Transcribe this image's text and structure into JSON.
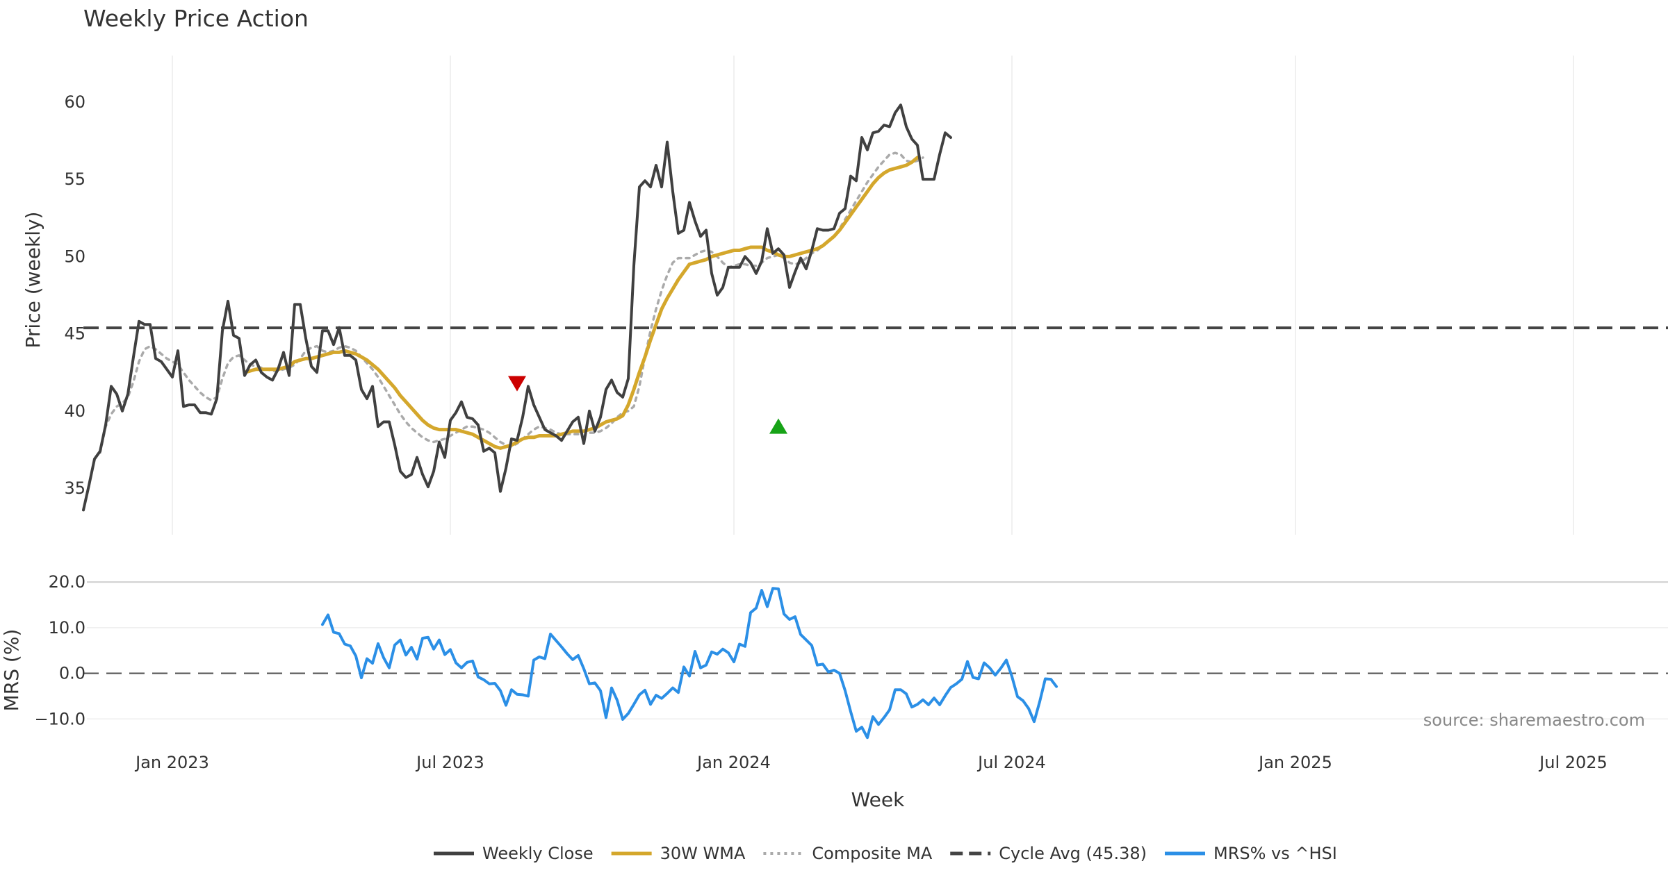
{
  "chart_data": [
    {
      "type": "line",
      "title": "Weekly Price Action",
      "ylabel": "Price (weekly)",
      "ylim": [
        32,
        63
      ],
      "yticks": [
        "60",
        "55",
        "50",
        "45",
        "40",
        "35"
      ],
      "x_tick_labels": [
        "Jan 2023",
        "Jul 2023",
        "Jan 2024",
        "Jul 2024",
        "Jan 2025",
        "Jul 2025"
      ],
      "x_tick_weeks": [
        16,
        66,
        117,
        167,
        218,
        268
      ],
      "x_range_weeks": [
        0,
        285
      ],
      "cycle_avg": 45.38,
      "series": [
        {
          "name": "Weekly Close",
          "color": "#404040",
          "style": "solid",
          "start_week": 0,
          "values": [
            33.6,
            35.2,
            36.9,
            37.4,
            39.1,
            41.6,
            41.1,
            40.0,
            41.1,
            43.5,
            45.8,
            45.6,
            45.6,
            43.4,
            43.2,
            42.7,
            42.2,
            43.9,
            40.3,
            40.4,
            40.4,
            39.9,
            39.9,
            39.8,
            40.8,
            45.2,
            47.1,
            44.9,
            44.7,
            42.3,
            43.0,
            43.3,
            42.5,
            42.2,
            42.0,
            42.7,
            43.8,
            42.3,
            46.9,
            46.9,
            44.7,
            42.9,
            42.5,
            45.2,
            45.2,
            44.3,
            45.4,
            43.6,
            43.6,
            43.3,
            41.4,
            40.8,
            41.6,
            39.0,
            39.3,
            39.3,
            37.8,
            36.1,
            35.7,
            35.9,
            37.0,
            35.9,
            35.1,
            36.1,
            38.0,
            37.0,
            39.4,
            39.9,
            40.6,
            39.6,
            39.5,
            39.1,
            37.4,
            37.6,
            37.3,
            34.8,
            36.3,
            38.2,
            38.1,
            39.6,
            41.6,
            40.4,
            39.6,
            38.8,
            38.6,
            38.4,
            38.1,
            38.7,
            39.3,
            39.6,
            37.9,
            40.0,
            38.7,
            39.6,
            41.4,
            42.0,
            41.2,
            40.9,
            42.1,
            49.4,
            54.5,
            54.9,
            54.5,
            55.9,
            54.5,
            57.4,
            54.2,
            51.5,
            51.7,
            53.5,
            52.3,
            51.3,
            51.7,
            48.9,
            47.5,
            48.0,
            49.3,
            49.3,
            49.3,
            50.0,
            49.6,
            48.9,
            49.7,
            51.8,
            50.2,
            50.5,
            50.1,
            48.0,
            49.0,
            49.9,
            49.2,
            50.4,
            51.8,
            51.7,
            51.7,
            51.8,
            52.8,
            53.1,
            55.2,
            54.9,
            57.7,
            56.9,
            58.0,
            58.1,
            58.5,
            58.4,
            59.3,
            59.8,
            58.4,
            57.6,
            57.2,
            55.0,
            55.0,
            55.0,
            56.6,
            58.0,
            57.7
          ]
        },
        {
          "name": "30W WMA",
          "color": "#d4a72c",
          "style": "solid",
          "start_week": 29,
          "values": [
            42.5,
            42.6,
            42.7,
            42.7,
            42.7,
            42.7,
            42.7,
            42.8,
            42.9,
            43.2,
            43.3,
            43.4,
            43.4,
            43.5,
            43.6,
            43.7,
            43.8,
            43.8,
            43.9,
            43.8,
            43.7,
            43.5,
            43.3,
            43.0,
            42.7,
            42.3,
            41.9,
            41.5,
            41.0,
            40.6,
            40.2,
            39.8,
            39.4,
            39.1,
            38.9,
            38.8,
            38.8,
            38.8,
            38.8,
            38.7,
            38.6,
            38.5,
            38.3,
            38.1,
            37.9,
            37.7,
            37.6,
            37.7,
            37.8,
            38.0,
            38.2,
            38.3,
            38.3,
            38.4,
            38.4,
            38.4,
            38.4,
            38.5,
            38.6,
            38.7,
            38.7,
            38.7,
            38.8,
            38.9,
            39.1,
            39.3,
            39.4,
            39.5,
            39.7,
            40.4,
            41.4,
            42.5,
            43.5,
            44.6,
            45.6,
            46.6,
            47.3,
            47.9,
            48.5,
            49.0,
            49.5,
            49.6,
            49.7,
            49.8,
            50.0,
            50.1,
            50.2,
            50.3,
            50.4,
            50.4,
            50.5,
            50.6,
            50.6,
            50.6,
            50.4,
            50.3,
            50.1,
            50.0,
            50.0,
            50.1,
            50.2,
            50.3,
            50.4,
            50.5,
            50.7,
            51.0,
            51.3,
            51.7,
            52.2,
            52.7,
            53.2,
            53.7,
            54.2,
            54.7,
            55.1,
            55.4,
            55.6,
            55.7,
            55.8,
            55.9,
            56.1,
            56.4
          ]
        },
        {
          "name": "Composite MA",
          "color": "#aaaaaa",
          "style": "dotted",
          "start_week": 3,
          "values": [
            37.3,
            39.0,
            39.8,
            40.3,
            40.5,
            40.9,
            41.9,
            43.2,
            44.0,
            44.2,
            44.0,
            43.7,
            43.4,
            43.2,
            43.0,
            42.5,
            42.0,
            41.6,
            41.2,
            40.9,
            40.7,
            40.9,
            42.1,
            43.1,
            43.5,
            43.6,
            43.3,
            43.0,
            42.9,
            42.8,
            42.7,
            42.6,
            42.6,
            42.7,
            42.8,
            43.0,
            43.4,
            43.9,
            44.1,
            44.2,
            43.9,
            43.8,
            43.9,
            44.1,
            44.2,
            44.1,
            43.9,
            43.5,
            43.1,
            42.7,
            42.2,
            41.6,
            41.0,
            40.4,
            39.8,
            39.3,
            38.9,
            38.6,
            38.3,
            38.1,
            38.0,
            38.1,
            38.2,
            38.4,
            38.6,
            38.8,
            39.0,
            39.0,
            38.9,
            38.8,
            38.6,
            38.3,
            38.0,
            37.8,
            37.7,
            37.9,
            38.2,
            38.5,
            38.8,
            39.0,
            38.9,
            38.8,
            38.6,
            38.5,
            38.5,
            38.5,
            38.5,
            38.7,
            38.6,
            38.6,
            38.7,
            38.9,
            39.2,
            39.6,
            39.9,
            40.0,
            40.3,
            41.6,
            43.5,
            45.2,
            46.6,
            47.8,
            48.8,
            49.6,
            49.9,
            49.9,
            49.9,
            50.1,
            50.3,
            50.4,
            50.3,
            50.0,
            49.6,
            49.3,
            49.4,
            49.5,
            49.5,
            49.4,
            49.4,
            49.6,
            49.9,
            50.0,
            50.1,
            49.9,
            49.6,
            49.5,
            49.6,
            49.9,
            50.2,
            50.4,
            50.7,
            51.0,
            51.3,
            51.8,
            52.4,
            53.0,
            53.6,
            54.2,
            54.8,
            55.3,
            55.8,
            56.2,
            56.6,
            56.7,
            56.6,
            56.2,
            56.1,
            56.2,
            56.4
          ]
        },
        {
          "name": "Cycle Avg (45.38)",
          "color": "#444444",
          "style": "dashed",
          "values": [
            45.38
          ]
        }
      ],
      "markers": [
        {
          "type": "sell",
          "shape": "down-triangle",
          "color": "#cc0000",
          "week": 78,
          "value": 41.8
        },
        {
          "type": "buy",
          "shape": "up-triangle",
          "color": "#17a317",
          "week": 125,
          "value": 39.0
        }
      ]
    },
    {
      "type": "line",
      "xlabel": "Week",
      "ylabel": "MRS (%)",
      "ylim": [
        -13,
        22
      ],
      "yticks": [
        "20.0",
        "10.0",
        "0.0",
        "−10.0"
      ],
      "series": [
        {
          "name": "MRS% vs ^HSI",
          "color": "#2b8fe6",
          "style": "solid",
          "start_week": 43,
          "values": [
            10.7,
            12.8,
            9.0,
            8.7,
            6.4,
            6.0,
            3.8,
            -1.0,
            3.2,
            2.2,
            6.5,
            3.4,
            1.2,
            6.2,
            7.3,
            4.0,
            5.7,
            3.1,
            7.7,
            7.9,
            5.3,
            7.3,
            4.1,
            5.2,
            2.3,
            1.2,
            2.4,
            2.7,
            -0.8,
            -1.4,
            -2.3,
            -2.2,
            -3.8,
            -7.0,
            -3.6,
            -4.6,
            -4.7,
            -5.0,
            2.9,
            3.6,
            3.2,
            8.6,
            7.2,
            5.8,
            4.3,
            3.0,
            3.9,
            1.0,
            -2.3,
            -2.1,
            -3.8,
            -9.7,
            -3.2,
            -5.9,
            -10.1,
            -8.8,
            -6.8,
            -4.7,
            -3.7,
            -6.8,
            -4.8,
            -5.5,
            -4.4,
            -3.2,
            -4.2,
            1.4,
            -0.6,
            4.8,
            1.2,
            1.8,
            4.7,
            4.2,
            5.3,
            4.5,
            2.5,
            6.4,
            5.9,
            13.3,
            14.3,
            18.2,
            14.6,
            18.6,
            18.5,
            13.0,
            11.8,
            12.4,
            8.5,
            7.3,
            6.1,
            1.8,
            2.0,
            0.3,
            0.7,
            0.0,
            -3.8,
            -8.4,
            -12.7,
            -11.8,
            -14.1,
            -9.5,
            -11.2,
            -9.7,
            -8.0,
            -3.6,
            -3.6,
            -4.5,
            -7.4,
            -6.8,
            -5.8,
            -6.9,
            -5.4,
            -6.9,
            -4.9,
            -3.1,
            -2.3,
            -1.3,
            2.6,
            -0.9,
            -1.2,
            2.3,
            1.2,
            -0.4,
            1.1,
            2.9,
            -0.7,
            -5.1,
            -6.0,
            -7.7,
            -10.6,
            -6.2,
            -1.2,
            -1.3,
            -2.9
          ]
        },
        {
          "name": "Zero line",
          "color": "#555555",
          "style": "dashed",
          "values": [
            0
          ]
        }
      ]
    }
  ],
  "x_tick_labels": [
    "Jan 2023",
    "Jul 2023",
    "Jan 2024",
    "Jul 2024",
    "Jan 2025",
    "Jul 2025"
  ],
  "legend": [
    {
      "label": "Weekly Close",
      "color": "#404040",
      "style": "solid"
    },
    {
      "label": "30W WMA",
      "color": "#d4a72c",
      "style": "solid"
    },
    {
      "label": "Composite MA",
      "color": "#aaaaaa",
      "style": "dotted"
    },
    {
      "label": "Cycle Avg (45.38)",
      "color": "#444444",
      "style": "dashed"
    },
    {
      "label": "MRS% vs ^HSI",
      "color": "#2b8fe6",
      "style": "solid"
    }
  ],
  "source": "source: sharemaestro.com"
}
